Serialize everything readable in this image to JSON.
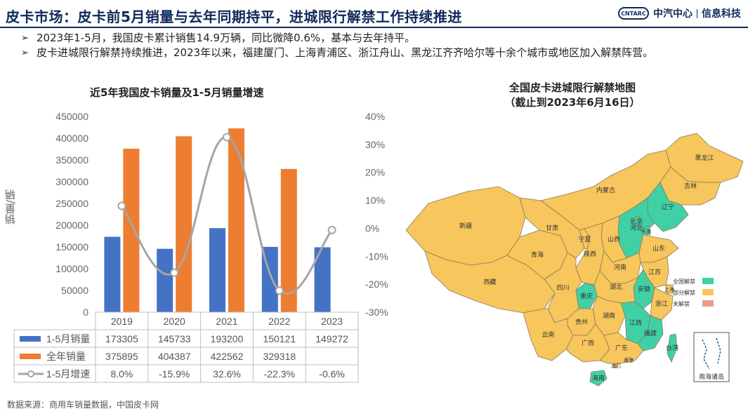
{
  "header": {
    "title": "皮卡市场：皮卡前5月销量与去年同期持平，进城限行解禁工作持续推进",
    "brand_logo": "CNTARC",
    "brand_name": "中汽中心",
    "brand_sub": "信息科技"
  },
  "bullets": [
    "2023年1-5月，我国皮卡累计销售14.9万辆，同比微降0.6%，基本与去年持平。",
    "皮卡进城限行解禁持续推进，2023年以来，福建厦门、上海青浦区、浙江舟山、黑龙江齐齐哈尔等十余个城市或地区加入解禁阵营。"
  ],
  "chart_data": {
    "type": "bar",
    "title": "近5年我国皮卡销量及1-5月销量增速",
    "ylabel": "销量/辆",
    "categories": [
      "2019",
      "2020",
      "2021",
      "2022",
      "2023"
    ],
    "ylim": [
      0,
      450000
    ],
    "yticks": [
      "0",
      "50000",
      "100000",
      "150000",
      "200000",
      "250000",
      "300000",
      "350000",
      "400000",
      "450000"
    ],
    "y2lim": [
      -30,
      40
    ],
    "y2ticks": [
      "-30%",
      "-20%",
      "-10%",
      "0%",
      "10%",
      "20%",
      "30%",
      "40%"
    ],
    "series": [
      {
        "name": "1-5月销量",
        "kind": "bar",
        "color": "#4472c4",
        "values": [
          173305,
          145733,
          193200,
          150121,
          149272
        ],
        "labels": [
          "173305",
          "145733",
          "193200",
          "150121",
          "149272"
        ]
      },
      {
        "name": "全年销量",
        "kind": "bar",
        "color": "#ed7d31",
        "values": [
          375895,
          404387,
          422562,
          329318,
          null
        ],
        "labels": [
          "375895",
          "404387",
          "422562",
          "329318",
          ""
        ]
      },
      {
        "name": "1-5月增速",
        "kind": "line",
        "color": "#a5a5a5",
        "values": [
          8.0,
          -15.9,
          32.6,
          -22.3,
          -0.6
        ],
        "labels": [
          "8.0%",
          "-15.9%",
          "32.6%",
          "-22.3%",
          "-0.6%"
        ]
      }
    ],
    "grid": false,
    "legend": "data-table"
  },
  "map": {
    "title_line1": "全国皮卡进城限行解禁地图",
    "title_line2": "（截止到2023年6月16日）",
    "legend": [
      {
        "label": "全国解禁",
        "color": "#3fd1a5"
      },
      {
        "label": "部分解禁",
        "color": "#f7c65c"
      },
      {
        "label": "未解禁",
        "color": "#ef9a8a"
      }
    ],
    "inset_label": "南海诸岛",
    "provinces": [
      {
        "name": "新疆",
        "status": "部分解禁"
      },
      {
        "name": "西藏",
        "status": "部分解禁"
      },
      {
        "name": "青海",
        "status": "部分解禁"
      },
      {
        "name": "甘肃",
        "status": "部分解禁"
      },
      {
        "name": "内蒙古",
        "status": "部分解禁"
      },
      {
        "name": "黑龙江",
        "status": "部分解禁"
      },
      {
        "name": "吉林",
        "status": "部分解禁"
      },
      {
        "name": "辽宁",
        "status": "全国解禁"
      },
      {
        "name": "北京",
        "status": "全国解禁"
      },
      {
        "name": "天津",
        "status": "全国解禁"
      },
      {
        "name": "河北",
        "status": "全国解禁"
      },
      {
        "name": "山西",
        "status": "部分解禁"
      },
      {
        "name": "宁夏",
        "status": "部分解禁"
      },
      {
        "name": "陕西",
        "status": "部分解禁"
      },
      {
        "name": "山东",
        "status": "部分解禁"
      },
      {
        "name": "河南",
        "status": "部分解禁"
      },
      {
        "name": "江苏",
        "status": "部分解禁"
      },
      {
        "name": "安徽",
        "status": "全国解禁"
      },
      {
        "name": "上海",
        "status": "部分解禁"
      },
      {
        "name": "浙江",
        "status": "部分解禁"
      },
      {
        "name": "湖北",
        "status": "部分解禁"
      },
      {
        "name": "四川",
        "status": "部分解禁"
      },
      {
        "name": "重庆",
        "status": "全国解禁"
      },
      {
        "name": "湖南",
        "status": "部分解禁"
      },
      {
        "name": "江西",
        "status": "全国解禁"
      },
      {
        "name": "福建",
        "status": "全国解禁"
      },
      {
        "name": "贵州",
        "status": "部分解禁"
      },
      {
        "name": "云南",
        "status": "部分解禁"
      },
      {
        "name": "广西",
        "status": "部分解禁"
      },
      {
        "name": "广东",
        "status": "部分解禁"
      },
      {
        "name": "香港",
        "status": "部分解禁"
      },
      {
        "name": "澳门",
        "status": "部分解禁"
      },
      {
        "name": "台湾",
        "status": "全国解禁"
      },
      {
        "name": "海南",
        "status": "全国解禁"
      }
    ]
  },
  "source": "数据来源：商用车销量数据，中国皮卡网"
}
